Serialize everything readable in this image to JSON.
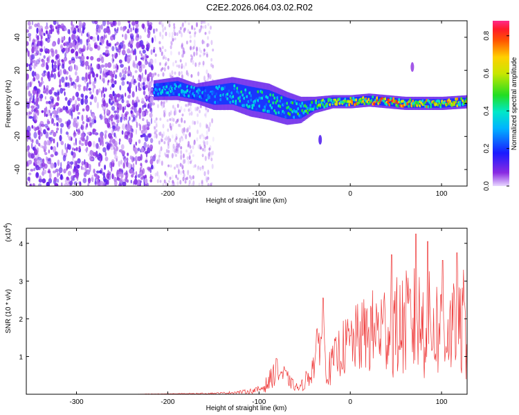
{
  "page_title": "C2E2.2026.064.03.02.R02",
  "chart_data": [
    {
      "type": "heatmap",
      "title": "C2E2.2026.064.03.02.R02",
      "xlabel": "Height of straight line (km)",
      "ylabel": "Frequency (Hz)",
      "xlim": [
        -355,
        128
      ],
      "ylim": [
        -50,
        50
      ],
      "x_ticks": [
        -300,
        -200,
        -100,
        0,
        100
      ],
      "x_tick_labels": [
        "-300",
        "-200",
        "-100",
        "0",
        "100"
      ],
      "y_ticks": [
        -40,
        -20,
        0,
        20,
        40
      ],
      "y_tick_labels": [
        "-40",
        "-20",
        "0",
        "20",
        "40"
      ],
      "colorbar": {
        "label": "Normalized spectral amplitude",
        "range": [
          0.0,
          0.88
        ],
        "ticks": [
          0.0,
          0.2,
          0.4,
          0.6,
          0.8
        ],
        "tick_labels": [
          "0.0",
          "0.2",
          "0.4",
          "0.6",
          "0.8"
        ],
        "colormap": "rainbow (violet-blue-cyan-green-yellow-red-pink)"
      },
      "noise_region": {
        "x_from": -355,
        "x_to": -215,
        "freq_range": [
          -50,
          50
        ],
        "amplitude": [
          0.02,
          0.12
        ]
      },
      "faint_region": {
        "x_from": -215,
        "x_to": -150,
        "freq_range": [
          -50,
          50
        ],
        "amplitude": [
          0.0,
          0.06
        ]
      },
      "ridge": {
        "x": [
          -215,
          -190,
          -170,
          -150,
          -130,
          -110,
          -90,
          -70,
          -55,
          -40,
          -20,
          0,
          20,
          40,
          60,
          80,
          100,
          128
        ],
        "center_freq": [
          8,
          9,
          6,
          5,
          6,
          3,
          1,
          -3,
          -4,
          -1,
          1,
          1,
          2,
          1,
          0,
          0,
          0,
          1
        ],
        "half_width": [
          6,
          7,
          6,
          9,
          10,
          11,
          11,
          10,
          8,
          5,
          4,
          4,
          4,
          4,
          4,
          4,
          4,
          4
        ],
        "peak_amplitude": [
          0.35,
          0.4,
          0.35,
          0.38,
          0.42,
          0.45,
          0.45,
          0.5,
          0.5,
          0.55,
          0.65,
          0.75,
          0.8,
          0.85,
          0.78,
          0.75,
          0.72,
          0.7
        ]
      },
      "outliers": [
        {
          "x": -33,
          "freq": -22,
          "amplitude": 0.12
        },
        {
          "x": 68,
          "freq": 22,
          "amplitude": 0.06
        }
      ]
    },
    {
      "type": "line",
      "xlabel": "Height of straight line (km)",
      "ylabel": "SNR (10 * v/v)",
      "y_multiplier": "(x10",
      "y_multiplier_exp": "4",
      "y_multiplier_close": ")",
      "xlim": [
        -355,
        128
      ],
      "ylim": [
        0,
        4.4
      ],
      "x_ticks": [
        -300,
        -200,
        -100,
        0,
        100
      ],
      "x_tick_labels": [
        "-300",
        "-200",
        "-100",
        "0",
        "100"
      ],
      "y_ticks": [
        1,
        2,
        3,
        4
      ],
      "y_tick_labels": [
        "1",
        "2",
        "3",
        "4"
      ],
      "series": [
        {
          "name": "SNR",
          "color": "#ee3333",
          "x": [
            -355,
            -300,
            -250,
            -200,
            -160,
            -140,
            -120,
            -110,
            -100,
            -95,
            -90,
            -85,
            -80,
            -75,
            -70,
            -65,
            -60,
            -55,
            -50,
            -45,
            -40,
            -36,
            -33,
            -30,
            -27,
            -24,
            -20,
            -15,
            -10,
            -5,
            0,
            10,
            20,
            30,
            40,
            50,
            60,
            70,
            80,
            90,
            100,
            110,
            120,
            128
          ],
          "values": [
            0.0,
            0.0,
            0.0,
            0.01,
            0.02,
            0.03,
            0.06,
            0.08,
            0.12,
            0.2,
            0.3,
            0.5,
            0.6,
            0.55,
            0.45,
            0.3,
            0.2,
            0.15,
            0.35,
            0.5,
            0.8,
            1.2,
            1.6,
            1.5,
            1.0,
            0.6,
            0.8,
            1.0,
            1.2,
            1.25,
            1.35,
            1.5,
            1.6,
            1.7,
            1.8,
            1.75,
            1.85,
            1.9,
            1.85,
            1.8,
            1.75,
            1.7,
            1.65,
            1.55
          ],
          "noise": [
            0.0,
            0.0,
            0.0,
            0.005,
            0.01,
            0.015,
            0.03,
            0.04,
            0.06,
            0.1,
            0.15,
            0.2,
            0.2,
            0.2,
            0.15,
            0.1,
            0.08,
            0.07,
            0.15,
            0.2,
            0.3,
            0.4,
            0.5,
            0.5,
            0.4,
            0.3,
            0.3,
            0.4,
            0.45,
            0.5,
            0.55,
            0.6,
            0.7,
            0.75,
            0.8,
            0.85,
            0.9,
            0.95,
            0.95,
            0.9,
            0.85,
            0.8,
            0.8,
            0.75
          ],
          "peaks": [
            [
              -81,
              0.95
            ],
            [
              -30,
              2.55
            ],
            [
              45,
              3.7
            ],
            [
              72,
              4.25
            ],
            [
              85,
              4.05
            ],
            [
              101,
              3.55
            ],
            [
              117,
              3.75
            ],
            [
              124,
              3.3
            ]
          ]
        }
      ]
    }
  ]
}
